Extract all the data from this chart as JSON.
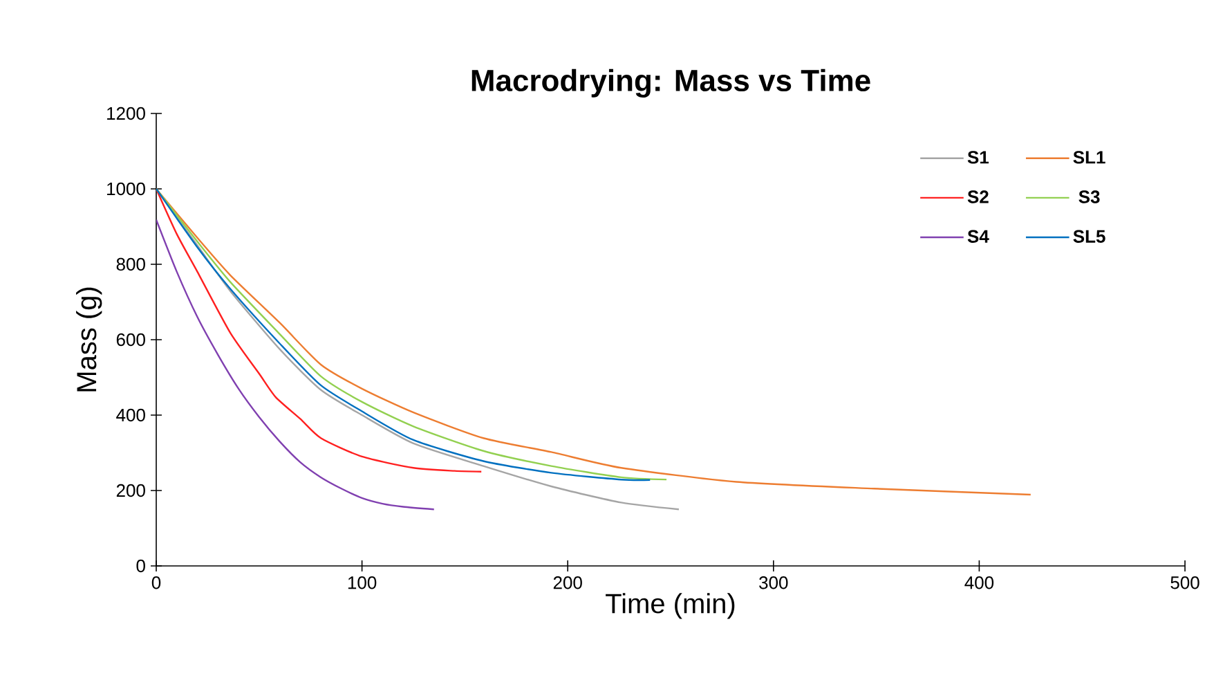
{
  "chart_data": {
    "type": "line",
    "title": "Macrodrying:  Mass vs Time",
    "xlabel": "Time (min)",
    "ylabel": "Mass (g)",
    "xlim": [
      0,
      500
    ],
    "xticks": [
      0,
      100,
      200,
      300,
      400,
      500
    ],
    "ylim": [
      0,
      1200
    ],
    "yticks": [
      0,
      200,
      400,
      600,
      800,
      1000,
      1200
    ],
    "grid": false,
    "legend": "top right",
    "marker": "none",
    "line_style": "solid",
    "series": [
      {
        "name": "S1",
        "color": "#a5a5a5",
        "x": [
          0,
          20,
          36,
          60,
          80,
          100,
          125,
          159,
          192,
          226,
          254
        ],
        "values": [
          1000,
          850,
          729,
          575,
          467,
          400,
          325,
          265,
          211,
          168,
          150
        ]
      },
      {
        "name": "SL1",
        "color": "#ed7d31",
        "x": [
          0,
          20,
          36,
          60,
          80,
          100,
          125,
          159,
          192,
          226,
          282,
          349,
          425
        ],
        "values": [
          1000,
          870,
          771,
          645,
          534,
          470,
          407,
          339,
          302,
          260,
          223,
          205,
          189
        ]
      },
      {
        "name": "S2",
        "color": "#ff2020",
        "x": [
          0,
          10,
          20,
          36,
          50,
          58,
          70,
          80,
          100,
          125,
          145,
          158
        ],
        "values": [
          1000,
          880,
          780,
          618,
          510,
          448,
          390,
          339,
          290,
          260,
          252,
          250
        ]
      },
      {
        "name": "S3",
        "color": "#92d050",
        "x": [
          0,
          20,
          36,
          60,
          80,
          100,
          125,
          159,
          192,
          226,
          248
        ],
        "values": [
          1000,
          860,
          753,
          615,
          503,
          435,
          370,
          305,
          265,
          235,
          229
        ]
      },
      {
        "name": "S4",
        "color": "#8040b0",
        "x": [
          0,
          10,
          20,
          30,
          40,
          50,
          60,
          70,
          80,
          90,
          100,
          110,
          120,
          135
        ],
        "values": [
          918,
          780,
          660,
          560,
          470,
          395,
          330,
          275,
          235,
          205,
          180,
          165,
          157,
          150
        ]
      },
      {
        "name": "SL5",
        "color": "#0070c0",
        "x": [
          0,
          20,
          36,
          60,
          80,
          100,
          125,
          159,
          192,
          226,
          240
        ],
        "values": [
          1000,
          845,
          735,
          590,
          479,
          410,
          334,
          278,
          247,
          229,
          228
        ]
      }
    ]
  }
}
